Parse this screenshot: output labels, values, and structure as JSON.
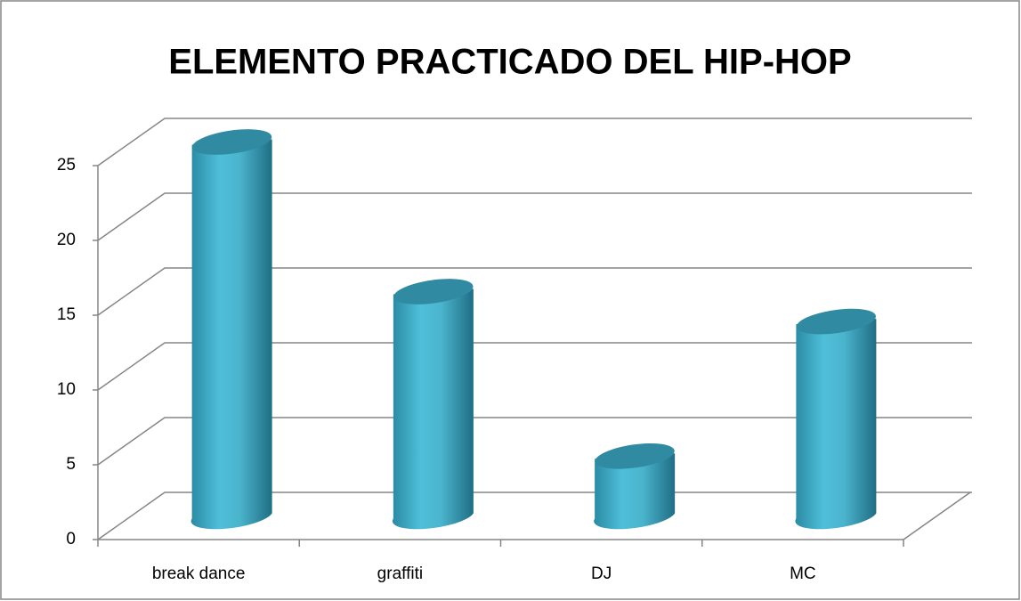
{
  "chart_data": {
    "type": "bar3d",
    "title": "ELEMENTO PRACTICADO DEL HIP-HOP",
    "categories": [
      "break dance",
      "graffiti",
      "DJ",
      "MC"
    ],
    "values": [
      25,
      15,
      4,
      13
    ],
    "color": "#4bacc6",
    "ylim": [
      0,
      25
    ],
    "yticks": [
      0,
      5,
      10,
      15,
      20,
      25
    ],
    "grid": true
  }
}
